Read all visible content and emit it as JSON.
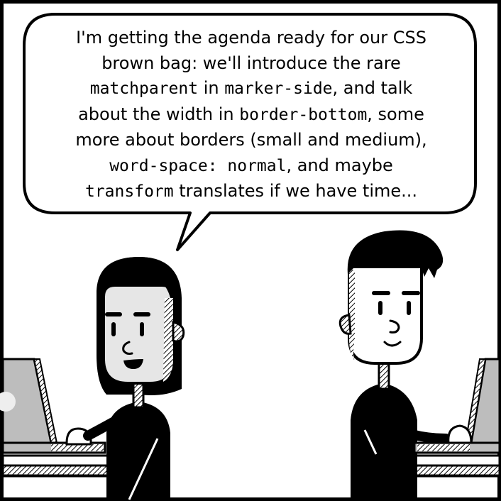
{
  "speech": {
    "t1": "I'm getting the agenda ready for our CSS",
    "t2": "brown bag: we'll introduce the rare",
    "c1": "matchparent",
    "t3": " in ",
    "c2": "marker-side",
    "t4": ", and talk",
    "t5": "about the width in ",
    "c3": "border-bottom",
    "t6": ", some",
    "t7": "more about borders (small and medium),",
    "c4": "word-space: normal",
    "t8": ", and maybe",
    "c5": "transform",
    "t9": " translates if we have time..."
  },
  "colors": {
    "ink": "#000000",
    "paper": "#ffffff",
    "skin": "#e6e6e6",
    "laptop": "#bdbdbd"
  }
}
